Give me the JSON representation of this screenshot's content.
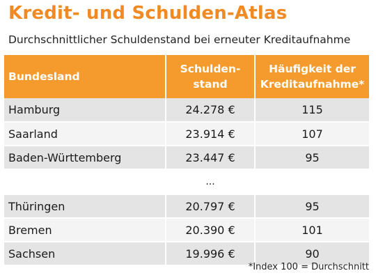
{
  "title": "Kredit- und Schulden-Atlas",
  "subtitle": "Durchschnittlicher Schuldenstand bei erneuter Kreditaufnahme",
  "table": {
    "headers": {
      "bundesland": "Bundesland",
      "schulden_line1": "Schulden-",
      "schulden_line2": "stand",
      "haeufigkeit_line1": "Häufigkeit der",
      "haeufigkeit_line2": "Kreditaufnahme*"
    },
    "rows_top": [
      {
        "land": "Hamburg",
        "schulden": "24.278 €",
        "haeufigkeit": "115"
      },
      {
        "land": "Saarland",
        "schulden": "23.914 €",
        "haeufigkeit": "107"
      },
      {
        "land": "Baden-Württemberg",
        "schulden": "23.447 €",
        "haeufigkeit": "95"
      }
    ],
    "ellipsis": "...",
    "rows_bottom": [
      {
        "land": "Thüringen",
        "schulden": "20.797 €",
        "haeufigkeit": "95"
      },
      {
        "land": "Bremen",
        "schulden": "20.390 €",
        "haeufigkeit": "101"
      },
      {
        "land": "Sachsen",
        "schulden": "19.996 €",
        "haeufigkeit": "90"
      }
    ]
  },
  "footnote": "*Index 100 = Durchschnitt",
  "colors": {
    "accent": "#f59a2c",
    "title": "#f08a24",
    "row_dark": "#e4e4e4",
    "row_light": "#f4f4f4"
  }
}
